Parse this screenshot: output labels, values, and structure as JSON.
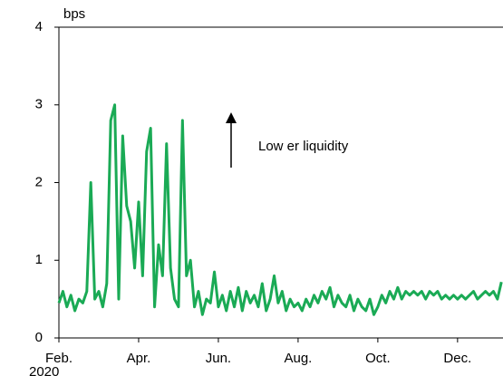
{
  "chart_data": {
    "type": "line",
    "ylabel": "bps",
    "annotation": "Low er liquidity",
    "x_year_label": "2020",
    "xlim": [
      0,
      11.14
    ],
    "xticks": [
      {
        "value": 0,
        "label": "Feb."
      },
      {
        "value": 2,
        "label": "Apr."
      },
      {
        "value": 4,
        "label": "Jun."
      },
      {
        "value": 6,
        "label": "Aug."
      },
      {
        "value": 8,
        "label": "Oct."
      },
      {
        "value": 10,
        "label": "Dec."
      }
    ],
    "ylim": [
      0,
      4
    ],
    "yticks": [
      0,
      1,
      2,
      3,
      4
    ],
    "x": [
      0,
      0.1,
      0.2,
      0.3,
      0.4,
      0.5,
      0.6,
      0.7,
      0.8,
      0.9,
      1,
      1.1,
      1.2,
      1.3,
      1.4,
      1.5,
      1.6,
      1.7,
      1.8,
      1.9,
      2,
      2.1,
      2.2,
      2.3,
      2.4,
      2.5,
      2.6,
      2.7,
      2.8,
      2.9,
      3,
      3.1,
      3.2,
      3.3,
      3.4,
      3.5,
      3.6,
      3.7,
      3.8,
      3.9,
      4,
      4.1,
      4.2,
      4.3,
      4.4,
      4.5,
      4.6,
      4.7,
      4.8,
      4.9,
      5,
      5.1,
      5.2,
      5.3,
      5.4,
      5.5,
      5.6,
      5.7,
      5.8,
      5.9,
      6,
      6.1,
      6.2,
      6.3,
      6.4,
      6.5,
      6.6,
      6.7,
      6.8,
      6.9,
      7,
      7.1,
      7.2,
      7.3,
      7.4,
      7.5,
      7.6,
      7.7,
      7.8,
      7.9,
      8,
      8.1,
      8.2,
      8.3,
      8.4,
      8.5,
      8.6,
      8.7,
      8.8,
      8.9,
      9,
      9.1,
      9.2,
      9.3,
      9.4,
      9.5,
      9.6,
      9.7,
      9.8,
      9.9,
      10,
      10.1,
      10.2,
      10.3,
      10.4,
      10.5,
      10.6,
      10.7,
      10.8,
      10.9,
      11,
      11.1
    ],
    "series": [
      {
        "color": "#1aaa55",
        "values": [
          0.45,
          0.6,
          0.4,
          0.55,
          0.35,
          0.5,
          0.45,
          0.6,
          2.0,
          0.5,
          0.6,
          0.4,
          0.7,
          2.8,
          3.0,
          0.5,
          2.6,
          1.7,
          1.5,
          0.9,
          1.75,
          0.8,
          2.4,
          2.7,
          0.4,
          1.2,
          0.8,
          2.5,
          0.9,
          0.5,
          0.4,
          2.8,
          0.8,
          1.0,
          0.4,
          0.6,
          0.3,
          0.5,
          0.45,
          0.85,
          0.4,
          0.55,
          0.35,
          0.6,
          0.4,
          0.65,
          0.35,
          0.6,
          0.45,
          0.55,
          0.4,
          0.7,
          0.35,
          0.5,
          0.8,
          0.45,
          0.6,
          0.35,
          0.5,
          0.4,
          0.45,
          0.35,
          0.5,
          0.4,
          0.55,
          0.45,
          0.6,
          0.5,
          0.65,
          0.4,
          0.55,
          0.45,
          0.4,
          0.55,
          0.35,
          0.5,
          0.4,
          0.35,
          0.5,
          0.3,
          0.4,
          0.55,
          0.45,
          0.6,
          0.5,
          0.65,
          0.5,
          0.6,
          0.55,
          0.6,
          0.55,
          0.6,
          0.5,
          0.6,
          0.55,
          0.6,
          0.5,
          0.55,
          0.5,
          0.55,
          0.5,
          0.55,
          0.5,
          0.55,
          0.6,
          0.5,
          0.55,
          0.6,
          0.55,
          0.6,
          0.5,
          0.72
        ]
      }
    ]
  }
}
